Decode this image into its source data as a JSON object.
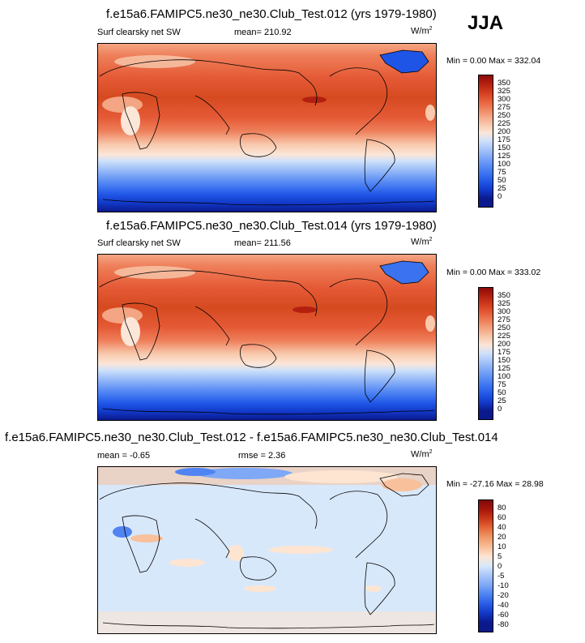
{
  "season": "JJA",
  "panels": [
    {
      "title": "f.e15a6.FAMIPC5.ne30_ne30.Club_Test.012 (yrs 1979-1980)",
      "left_label": "Surf clearsky net SW",
      "mean_text": "mean= 210.92",
      "units": "W/m",
      "units_exp": "2",
      "minmax": "Min =   0.00 Max = 332.04",
      "levels": [
        "350",
        "325",
        "300",
        "275",
        "250",
        "225",
        "200",
        "175",
        "150",
        "125",
        "100",
        "75",
        "50",
        "25",
        "0"
      ]
    },
    {
      "title": "f.e15a6.FAMIPC5.ne30_ne30.Club_Test.014 (yrs 1979-1980)",
      "left_label": "Surf clearsky net SW",
      "mean_text": "mean= 211.56",
      "units": "W/m",
      "units_exp": "2",
      "minmax": "Min =   0.00 Max = 333.02",
      "levels": [
        "350",
        "325",
        "300",
        "275",
        "250",
        "225",
        "200",
        "175",
        "150",
        "125",
        "100",
        "75",
        "50",
        "25",
        "0"
      ]
    },
    {
      "title": "f.e15a6.FAMIPC5.ne30_ne30.Club_Test.012 - f.e15a6.FAMIPC5.ne30_ne30.Club_Test.014",
      "left_label": "mean =   -0.65",
      "mean_text": "rmse =   2.36",
      "units": "W/m",
      "units_exp": "2",
      "minmax": "Min = -27.16 Max =  28.98",
      "levels": [
        "80",
        "60",
        "40",
        "20",
        "10",
        "5",
        "0",
        "-5",
        "-10",
        "-20",
        "-40",
        "-60",
        "-80"
      ]
    }
  ],
  "chart_data": [
    {
      "type": "heatmap",
      "title": "f.e15a6.FAMIPC5.ne30_ne30.Club_Test.012 (yrs 1979-1980)",
      "variable": "Surf clearsky net SW",
      "units": "W/m2",
      "mean": 210.92,
      "min": 0.0,
      "max": 332.04,
      "contour_levels": [
        0,
        25,
        50,
        75,
        100,
        125,
        150,
        175,
        200,
        225,
        250,
        275,
        300,
        325,
        350
      ],
      "colorbar_colors": [
        "#0a1a8c",
        "#1238c8",
        "#1f55e6",
        "#3a72f0",
        "#5a8cf4",
        "#7fa8f6",
        "#a6c4f8",
        "#cde0fb",
        "#fbe6d8",
        "#f8c9ad",
        "#f4a583",
        "#ee7f5a",
        "#e55a36",
        "#d13a1c",
        "#b3200f",
        "#8c0a0a"
      ]
    },
    {
      "type": "heatmap",
      "title": "f.e15a6.FAMIPC5.ne30_ne30.Club_Test.014 (yrs 1979-1980)",
      "variable": "Surf clearsky net SW",
      "units": "W/m2",
      "mean": 211.56,
      "min": 0.0,
      "max": 333.02,
      "contour_levels": [
        0,
        25,
        50,
        75,
        100,
        125,
        150,
        175,
        200,
        225,
        250,
        275,
        300,
        325,
        350
      ],
      "colorbar_colors": [
        "#0a1a8c",
        "#1238c8",
        "#1f55e6",
        "#3a72f0",
        "#5a8cf4",
        "#7fa8f6",
        "#a6c4f8",
        "#cde0fb",
        "#fbe6d8",
        "#f8c9ad",
        "#f4a583",
        "#ee7f5a",
        "#e55a36",
        "#d13a1c",
        "#b3200f",
        "#8c0a0a"
      ]
    },
    {
      "type": "heatmap",
      "title": "f.e15a6.FAMIPC5.ne30_ne30.Club_Test.012 - f.e15a6.FAMIPC5.ne30_ne30.Club_Test.014",
      "units": "W/m2",
      "mean": -0.65,
      "rmse": 2.36,
      "min": -27.16,
      "max": 28.98,
      "contour_levels": [
        -80,
        -60,
        -40,
        -20,
        -10,
        -5,
        0,
        5,
        10,
        20,
        40,
        60,
        80
      ],
      "colorbar_colors": [
        "#0a1a8c",
        "#1238c8",
        "#2a5ee8",
        "#4f84f2",
        "#7fa8f6",
        "#a9c6f8",
        "#d8e8fb",
        "#fde5d2",
        "#f8c09b",
        "#f09a6b",
        "#e56a3c",
        "#cc3a1a",
        "#a8160c",
        "#800a0a"
      ]
    }
  ]
}
